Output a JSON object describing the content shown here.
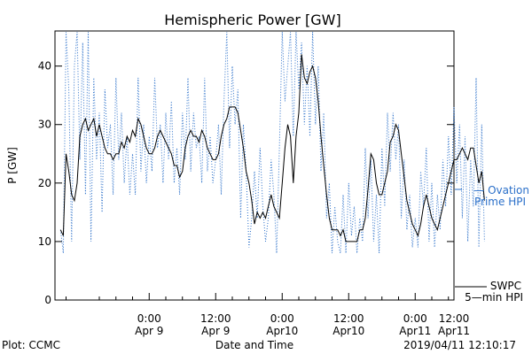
{
  "chart_data": {
    "type": "line",
    "title": "Hemispheric Power [GW]",
    "xlabel": "Date and Time",
    "ylabel": "P [GW]",
    "ylim": [
      0,
      46
    ],
    "yticks": [
      0,
      10,
      20,
      30,
      40
    ],
    "xlim_hours": [
      -17,
      55
    ],
    "xticks": [
      {
        "hour": 0,
        "time": "0:00",
        "date": "Apr 9"
      },
      {
        "hour": 12,
        "time": "12:00",
        "date": "Apr 9"
      },
      {
        "hour": 24,
        "time": "0:00",
        "date": "Apr10"
      },
      {
        "hour": 36,
        "time": "12:00",
        "date": "Apr10"
      },
      {
        "hour": 48,
        "time": "0:00",
        "date": "Apr11"
      },
      {
        "hour": 60,
        "time": "12:00",
        "date": "Apr11"
      }
    ],
    "series": [
      {
        "name": "SWPC 5-min HPI",
        "color": "#000000",
        "style": "solid",
        "points": [
          [
            -16,
            12
          ],
          [
            -15.5,
            11
          ],
          [
            -15,
            25
          ],
          [
            -14.5,
            22
          ],
          [
            -14,
            18
          ],
          [
            -13.5,
            17
          ],
          [
            -13,
            20
          ],
          [
            -12.5,
            28
          ],
          [
            -12,
            30
          ],
          [
            -11.5,
            31
          ],
          [
            -11,
            29
          ],
          [
            -10.5,
            30
          ],
          [
            -10,
            31
          ],
          [
            -9.5,
            28
          ],
          [
            -9,
            30
          ],
          [
            -8.5,
            28
          ],
          [
            -8,
            26
          ],
          [
            -7.5,
            25
          ],
          [
            -7,
            25
          ],
          [
            -6.5,
            24
          ],
          [
            -6,
            25
          ],
          [
            -5.5,
            25
          ],
          [
            -5,
            27
          ],
          [
            -4.5,
            26
          ],
          [
            -4,
            28
          ],
          [
            -3.5,
            27
          ],
          [
            -3,
            29
          ],
          [
            -2.5,
            28
          ],
          [
            -2,
            31
          ],
          [
            -1.5,
            30
          ],
          [
            -1,
            28
          ],
          [
            -0.5,
            26
          ],
          [
            0,
            25
          ],
          [
            0.5,
            25
          ],
          [
            1,
            26
          ],
          [
            1.5,
            28
          ],
          [
            2,
            29
          ],
          [
            2.5,
            28
          ],
          [
            3,
            27
          ],
          [
            3.5,
            26
          ],
          [
            4,
            25
          ],
          [
            4.5,
            23
          ],
          [
            5,
            23
          ],
          [
            5.5,
            21
          ],
          [
            6,
            22
          ],
          [
            6.5,
            26
          ],
          [
            7,
            28
          ],
          [
            7.5,
            29
          ],
          [
            8,
            28
          ],
          [
            8.5,
            28
          ],
          [
            9,
            27
          ],
          [
            9.5,
            29
          ],
          [
            10,
            28
          ],
          [
            10.5,
            26
          ],
          [
            11,
            25
          ],
          [
            11.5,
            24
          ],
          [
            12,
            24
          ],
          [
            12.5,
            25
          ],
          [
            13,
            28
          ],
          [
            13.5,
            30
          ],
          [
            14,
            31
          ],
          [
            14.5,
            33
          ],
          [
            15,
            33
          ],
          [
            15.5,
            33
          ],
          [
            16,
            32
          ],
          [
            16.5,
            29
          ],
          [
            17,
            26
          ],
          [
            17.5,
            22
          ],
          [
            18,
            20
          ],
          [
            18.5,
            17
          ],
          [
            19,
            13
          ],
          [
            19.5,
            15
          ],
          [
            20,
            14
          ],
          [
            20.5,
            15
          ],
          [
            21,
            14
          ],
          [
            21.5,
            16
          ],
          [
            22,
            18
          ],
          [
            22.5,
            16
          ],
          [
            23,
            15
          ],
          [
            23.5,
            14
          ],
          [
            24,
            20
          ],
          [
            24.5,
            26
          ],
          [
            25,
            30
          ],
          [
            25.5,
            28
          ],
          [
            26,
            20
          ],
          [
            26.5,
            28
          ],
          [
            27,
            32
          ],
          [
            27.5,
            42
          ],
          [
            28,
            38
          ],
          [
            28.5,
            37
          ],
          [
            29,
            39
          ],
          [
            29.5,
            40
          ],
          [
            30,
            38
          ],
          [
            30.5,
            34
          ],
          [
            31,
            28
          ],
          [
            31.5,
            23
          ],
          [
            32,
            18
          ],
          [
            32.5,
            14
          ],
          [
            33,
            12
          ],
          [
            33.5,
            12
          ],
          [
            34,
            12
          ],
          [
            34.5,
            11
          ],
          [
            35,
            12
          ],
          [
            35.5,
            10
          ],
          [
            36,
            10
          ],
          [
            36.5,
            10
          ],
          [
            37,
            10
          ],
          [
            37.5,
            10
          ],
          [
            38,
            12
          ],
          [
            38.5,
            12
          ],
          [
            39,
            14
          ],
          [
            39.5,
            19
          ],
          [
            40,
            25
          ],
          [
            40.5,
            24
          ],
          [
            41,
            20
          ],
          [
            41.5,
            18
          ],
          [
            42,
            18
          ],
          [
            42.5,
            20
          ],
          [
            43,
            22
          ],
          [
            43.5,
            27
          ],
          [
            44,
            28
          ],
          [
            44.5,
            30
          ],
          [
            45,
            29
          ],
          [
            45.5,
            25
          ],
          [
            46,
            21
          ],
          [
            46.5,
            17
          ],
          [
            47,
            15
          ],
          [
            47.5,
            13
          ],
          [
            48,
            12
          ],
          [
            48.5,
            11
          ],
          [
            49,
            13
          ],
          [
            49.5,
            16
          ],
          [
            50,
            18
          ],
          [
            50.5,
            16
          ],
          [
            51,
            14
          ],
          [
            51.5,
            13
          ],
          [
            52,
            12
          ],
          [
            52.5,
            14
          ],
          [
            53,
            16
          ],
          [
            53.5,
            18
          ],
          [
            54,
            20
          ],
          [
            54.5,
            22
          ],
          [
            55,
            24
          ],
          [
            55.5,
            24
          ],
          [
            56,
            25
          ],
          [
            56.5,
            26
          ],
          [
            57,
            25
          ],
          [
            57.5,
            24
          ],
          [
            58,
            26
          ],
          [
            58.5,
            26
          ],
          [
            59,
            23
          ],
          [
            59.5,
            20
          ],
          [
            60,
            22
          ],
          [
            60.5,
            17
          ]
        ]
      },
      {
        "name": "Ovation Prime HPI",
        "color": "#2a6fc9",
        "style": "dotted",
        "points": [
          [
            -16,
            12
          ],
          [
            -15.5,
            8
          ],
          [
            -15,
            46
          ],
          [
            -14.5,
            36
          ],
          [
            -14,
            10
          ],
          [
            -13.5,
            40
          ],
          [
            -13,
            46
          ],
          [
            -12.5,
            24
          ],
          [
            -12,
            44
          ],
          [
            -11.5,
            18
          ],
          [
            -11,
            46
          ],
          [
            -10.5,
            10
          ],
          [
            -10,
            38
          ],
          [
            -9.5,
            24
          ],
          [
            -9,
            32
          ],
          [
            -8.5,
            15
          ],
          [
            -8,
            36
          ],
          [
            -7.5,
            26
          ],
          [
            -7,
            30
          ],
          [
            -6.5,
            18
          ],
          [
            -6,
            38
          ],
          [
            -5.5,
            24
          ],
          [
            -5,
            32
          ],
          [
            -4.5,
            20
          ],
          [
            -4,
            28
          ],
          [
            -3.5,
            18
          ],
          [
            -3,
            25
          ],
          [
            -2.5,
            18
          ],
          [
            -2,
            38
          ],
          [
            -1.5,
            22
          ],
          [
            -1,
            30
          ],
          [
            -0.5,
            20
          ],
          [
            0,
            28
          ],
          [
            0.5,
            22
          ],
          [
            1,
            38
          ],
          [
            1.5,
            26
          ],
          [
            2,
            30
          ],
          [
            2.5,
            20
          ],
          [
            3,
            32
          ],
          [
            3.5,
            24
          ],
          [
            4,
            34
          ],
          [
            4.5,
            20
          ],
          [
            5,
            26
          ],
          [
            5.5,
            18
          ],
          [
            6,
            32
          ],
          [
            6.5,
            24
          ],
          [
            7,
            38
          ],
          [
            7.5,
            22
          ],
          [
            8,
            32
          ],
          [
            8.5,
            26
          ],
          [
            9,
            28
          ],
          [
            9.5,
            20
          ],
          [
            10,
            38
          ],
          [
            10.5,
            22
          ],
          [
            11,
            28
          ],
          [
            11.5,
            20
          ],
          [
            12,
            24
          ],
          [
            12.5,
            30
          ],
          [
            13,
            18
          ],
          [
            13.5,
            34
          ],
          [
            14,
            46
          ],
          [
            14.5,
            26
          ],
          [
            15,
            40
          ],
          [
            15.5,
            30
          ],
          [
            16,
            36
          ],
          [
            16.5,
            14
          ],
          [
            17,
            30
          ],
          [
            17.5,
            22
          ],
          [
            18,
            9
          ],
          [
            18.5,
            14
          ],
          [
            19,
            22
          ],
          [
            19.5,
            14
          ],
          [
            20,
            26
          ],
          [
            20.5,
            16
          ],
          [
            21,
            10
          ],
          [
            21.5,
            14
          ],
          [
            22,
            24
          ],
          [
            22.5,
            18
          ],
          [
            23,
            8
          ],
          [
            23.5,
            26
          ],
          [
            24,
            46
          ],
          [
            24.5,
            34
          ],
          [
            25,
            40
          ],
          [
            25.5,
            46
          ],
          [
            26,
            28
          ],
          [
            26.5,
            46
          ],
          [
            27,
            36
          ],
          [
            27.5,
            44
          ],
          [
            28,
            30
          ],
          [
            28.5,
            40
          ],
          [
            29,
            28
          ],
          [
            29.5,
            46
          ],
          [
            30,
            30
          ],
          [
            30.5,
            40
          ],
          [
            31,
            22
          ],
          [
            31.5,
            32
          ],
          [
            32,
            14
          ],
          [
            32.5,
            20
          ],
          [
            33,
            8
          ],
          [
            33.5,
            16
          ],
          [
            34,
            10
          ],
          [
            34.5,
            8
          ],
          [
            35,
            18
          ],
          [
            35.5,
            8
          ],
          [
            36,
            20
          ],
          [
            36.5,
            11
          ],
          [
            37,
            16
          ],
          [
            37.5,
            8
          ],
          [
            38,
            14
          ],
          [
            38.5,
            10
          ],
          [
            39,
            26
          ],
          [
            39.5,
            14
          ],
          [
            40,
            24
          ],
          [
            40.5,
            10
          ],
          [
            41,
            18
          ],
          [
            41.5,
            8
          ],
          [
            42,
            26
          ],
          [
            42.5,
            16
          ],
          [
            43,
            32
          ],
          [
            43.5,
            22
          ],
          [
            44,
            32
          ],
          [
            44.5,
            24
          ],
          [
            45,
            30
          ],
          [
            45.5,
            14
          ],
          [
            46,
            24
          ],
          [
            46.5,
            12
          ],
          [
            47,
            18
          ],
          [
            47.5,
            9
          ],
          [
            48,
            14
          ],
          [
            48.5,
            9
          ],
          [
            49,
            22
          ],
          [
            49.5,
            16
          ],
          [
            50,
            26
          ],
          [
            50.5,
            10
          ],
          [
            51,
            20
          ],
          [
            51.5,
            9
          ],
          [
            52,
            18
          ],
          [
            52.5,
            12
          ],
          [
            53,
            24
          ],
          [
            53.5,
            16
          ],
          [
            54,
            28
          ],
          [
            54.5,
            18
          ],
          [
            55,
            33
          ],
          [
            55.5,
            20
          ],
          [
            56,
            30
          ],
          [
            56.5,
            14
          ],
          [
            57,
            28
          ],
          [
            57.5,
            10
          ],
          [
            58,
            24
          ],
          [
            58.5,
            16
          ],
          [
            59,
            38
          ],
          [
            59.5,
            9
          ],
          [
            60,
            30
          ],
          [
            60.5,
            10
          ]
        ]
      }
    ],
    "legend": {
      "ovation_line1": "— Ovation",
      "ovation_line2": "Prime HPI",
      "swpc_line1": "SWPC",
      "swpc_line2": "5—min HPI"
    },
    "footer_left": "Plot: CCMC",
    "footer_right": "2019/04/11 12:10:17"
  }
}
